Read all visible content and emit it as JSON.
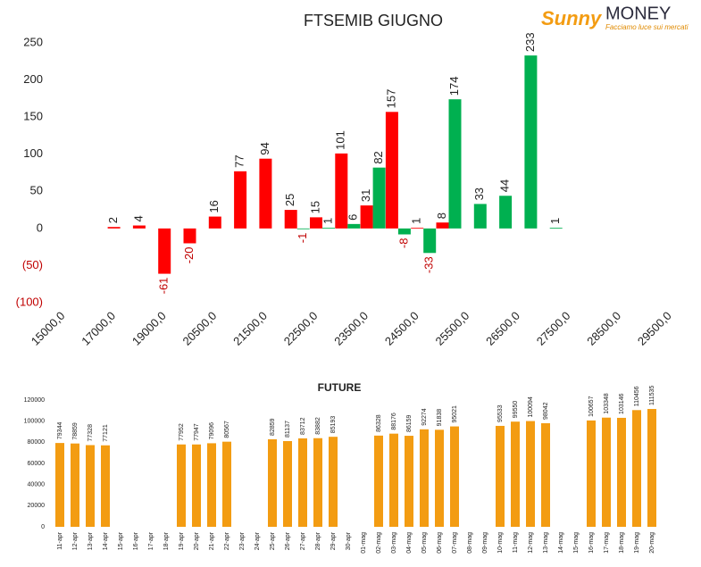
{
  "logo": {
    "brand": "Sunny",
    "name": "MONEY",
    "tagline": "Facciamo luce sui mercati"
  },
  "chart_data": [
    {
      "type": "bar",
      "title": "FTSEMIB GIUGNO",
      "categories": [
        "15000,0",
        null,
        "17000,0",
        null,
        "19000,0",
        null,
        "20500,0",
        null,
        "21500,0",
        null,
        "22500,0",
        null,
        "23500,0",
        null,
        "24500,0",
        null,
        "25500,0",
        null,
        "26500,0",
        null,
        "27500,0",
        null,
        "28500,0",
        null,
        "29500,0"
      ],
      "series": [
        {
          "color": "#ff0000",
          "values": [
            null,
            null,
            2,
            4,
            -61,
            -20,
            16,
            77,
            94,
            25,
            15,
            101,
            31,
            157,
            1,
            8,
            null,
            null,
            null,
            null,
            null,
            null,
            null,
            null,
            null
          ]
        },
        {
          "color": "#00b050",
          "values": [
            null,
            null,
            null,
            null,
            null,
            null,
            null,
            null,
            null,
            -1,
            1,
            6,
            82,
            -8,
            -33,
            174,
            33,
            44,
            233,
            1,
            null,
            null,
            null,
            null,
            null
          ]
        }
      ],
      "ylim": [
        -100,
        250
      ],
      "yticks": [
        {
          "value": -100,
          "label": "(100)"
        },
        {
          "value": -50,
          "label": "(50)"
        },
        0,
        50,
        100,
        150,
        200,
        250
      ],
      "negative_color": "#c00000"
    },
    {
      "type": "bar",
      "title": "FUTURE",
      "categories": [
        "11-apr",
        "12-apr",
        "13-apr",
        "14-apr",
        "15-apr",
        "16-apr",
        "17-apr",
        "18-apr",
        "19-apr",
        "20-apr",
        "21-apr",
        "22-apr",
        "23-apr",
        "24-apr",
        "25-apr",
        "26-apr",
        "27-apr",
        "28-apr",
        "29-apr",
        "30-apr",
        "01-mag",
        "02-mag",
        "03-mag",
        "04-mag",
        "05-mag",
        "06-mag",
        "07-mag",
        "08-mag",
        "09-mag",
        "10-mag",
        "11-mag",
        "12-mag",
        "13-mag",
        "14-mag",
        "15-mag",
        "16-mag",
        "17-mag",
        "18-mag",
        "19-mag",
        "20-mag"
      ],
      "series": [
        {
          "color": "#f39c12",
          "values": [
            79344,
            78859,
            77328,
            77121,
            null,
            null,
            null,
            null,
            77952,
            77947,
            79096,
            80567,
            null,
            null,
            82859,
            81137,
            83712,
            83882,
            85193,
            null,
            null,
            86328,
            88176,
            86159,
            92274,
            91838,
            95021,
            null,
            null,
            95533,
            99550,
            100094,
            98042,
            null,
            null,
            100657,
            103348,
            103146,
            110456,
            111535
          ]
        }
      ],
      "ylim": [
        0,
        120000
      ],
      "yticks": [
        0,
        20000,
        40000,
        60000,
        80000,
        100000,
        120000
      ]
    }
  ]
}
